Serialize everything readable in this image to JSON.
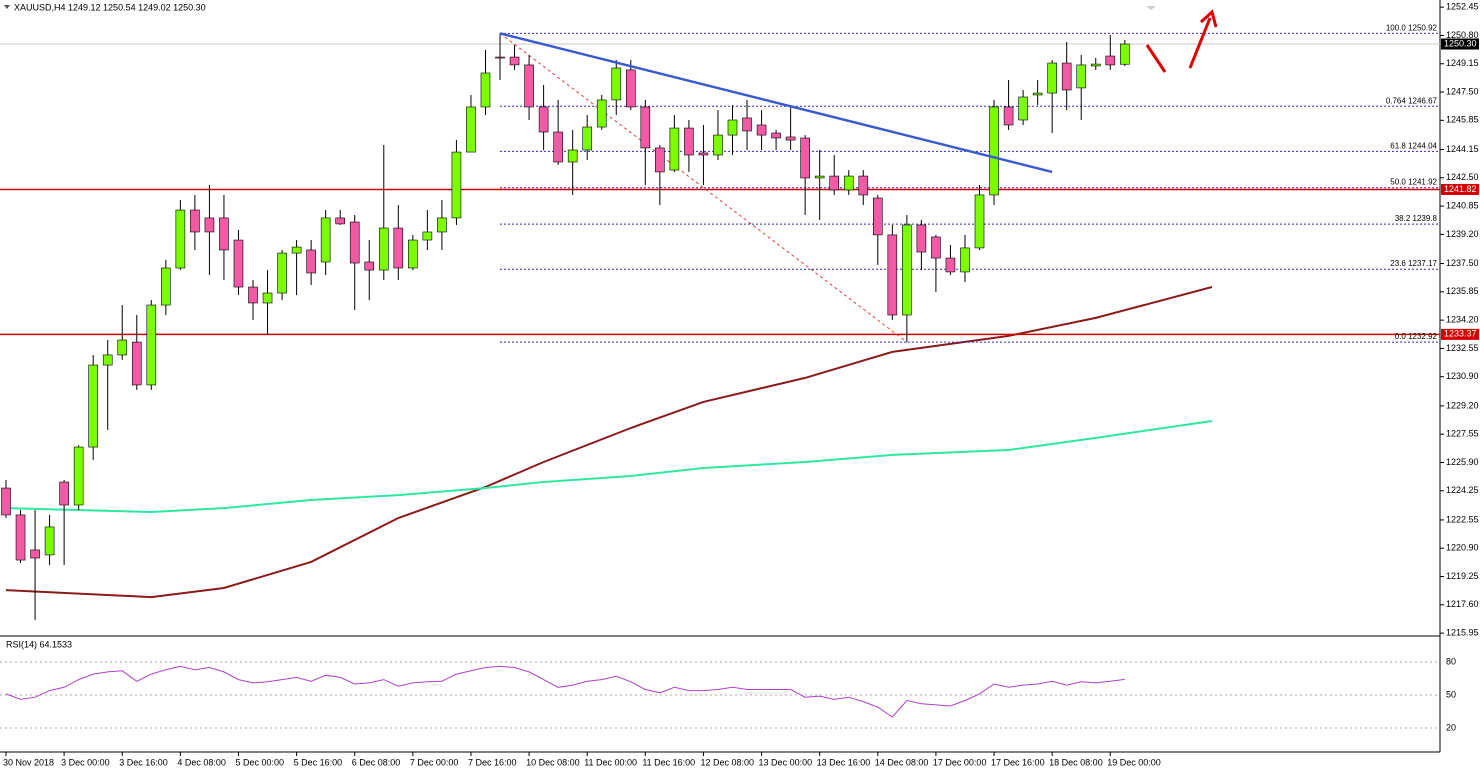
{
  "chart_data": {
    "type": "candlestick",
    "title": "XAUUSD,H4  1249.12 1250.54 1249.02 1250.30",
    "categories": [
      "30 Nov 2018",
      null,
      null,
      null,
      "3 Dec 00:00",
      null,
      null,
      null,
      "3 Dec 16:00",
      null,
      null,
      null,
      "4 Dec 08:00",
      null,
      null,
      null,
      "5 Dec 00:00",
      null,
      null,
      null,
      "5 Dec 16:00",
      null,
      null,
      null,
      "6 Dec 08:00",
      null,
      null,
      null,
      "7 Dec 00:00",
      null,
      null,
      null,
      "7 Dec 16:00",
      null,
      null,
      null,
      "10 Dec 08:00",
      null,
      null,
      null,
      "11 Dec 00:00",
      null,
      null,
      null,
      "11 Dec 16:00",
      null,
      null,
      null,
      "12 Dec 08:00",
      null,
      null,
      null,
      "13 Dec 00:00",
      null,
      null,
      null,
      "13 Dec 16:00",
      null,
      null,
      null,
      "14 Dec 08:00",
      null,
      null,
      null,
      "17 Dec 00:00",
      null,
      null,
      null,
      "17 Dec 16:00",
      null,
      null,
      null,
      "18 Dec 08:00",
      null,
      null,
      null,
      "19 Dec 00:00",
      null
    ],
    "open": [
      1224.41,
      1222.84,
      1220.8,
      1220.51,
      1224.76,
      1223.42,
      1226.8,
      1231.58,
      1232.17,
      1232.92,
      1230.42,
      1235.08,
      1237.24,
      1240.62,
      1240.16,
      1240.16,
      1238.87,
      1236.13,
      1235.2,
      1235.78,
      1238.11,
      1238.29,
      1237.59,
      1240.16,
      1239.92,
      1237.59,
      1237.12,
      1239.57,
      1237.24,
      1238.87,
      1239.34,
      1240.16,
      1244.0,
      1246.63,
      1249.54,
      1249.54,
      1249.08,
      1246.63,
      1245.17,
      1243.42,
      1244.12,
      1245.46,
      1247.04,
      1248.79,
      1246.63,
      1244.24,
      1242.95,
      1245.4,
      1243.95,
      1243.83,
      1244.99,
      1245.99,
      1245.58,
      1245.11,
      1244.88,
      1244.82,
      1242.49,
      1242.6,
      1241.79,
      1242.6,
      1241.32,
      1239.17,
      1234.5,
      1239.75,
      1239.05,
      1237.82,
      1237.01,
      1238.41,
      1241.5,
      1246.63,
      1245.87,
      1247.33,
      1247.44,
      1249.19,
      1247.74,
      1249.02,
      1249.6,
      1249.12
    ],
    "high": [
      1224.88,
      1223.13,
      1223.13,
      1222.84,
      1224.88,
      1226.9,
      1232.17,
      1233.04,
      1235.08,
      1234.5,
      1235.37,
      1237.71,
      1241.21,
      1241.5,
      1242.08,
      1241.5,
      1239.46,
      1236.54,
      1237.12,
      1238.29,
      1238.87,
      1238.87,
      1240.62,
      1240.62,
      1240.33,
      1238.87,
      1244.41,
      1240.91,
      1239.17,
      1240.62,
      1241.21,
      1244.7,
      1247.33,
      1249.95,
      1250.92,
      1250.24,
      1249.66,
      1247.91,
      1247.04,
      1245.29,
      1246.16,
      1247.33,
      1249.37,
      1249.37,
      1247.04,
      1244.41,
      1246.16,
      1245.87,
      1245.58,
      1246.45,
      1246.74,
      1247.04,
      1246.45,
      1245.29,
      1246.74,
      1244.99,
      1244.12,
      1243.83,
      1242.95,
      1242.95,
      1241.5,
      1239.75,
      1240.33,
      1240.04,
      1239.17,
      1238.58,
      1239.17,
      1242.08,
      1247.04,
      1248.2,
      1247.62,
      1248.2,
      1249.37,
      1250.42,
      1249.66,
      1249.49,
      1250.83,
      1250.54
    ],
    "low": [
      1222.66,
      1220.04,
      1216.72,
      1219.92,
      1219.92,
      1223.13,
      1226.04,
      1227.8,
      1231.88,
      1230.13,
      1230.13,
      1234.5,
      1237.12,
      1238.29,
      1236.83,
      1236.54,
      1235.66,
      1234.21,
      1233.33,
      1235.37,
      1235.66,
      1236.25,
      1236.83,
      1239.75,
      1234.79,
      1235.37,
      1236.54,
      1236.54,
      1237.12,
      1238.29,
      1238.29,
      1239.75,
      1244.0,
      1246.16,
      1248.2,
      1248.79,
      1245.87,
      1244.12,
      1243.25,
      1241.5,
      1243.54,
      1245.29,
      1246.16,
      1246.45,
      1242.08,
      1240.91,
      1242.84,
      1242.84,
      1242.08,
      1243.54,
      1243.83,
      1244.12,
      1244.12,
      1244.12,
      1244.12,
      1240.33,
      1240.04,
      1241.5,
      1241.5,
      1240.91,
      1237.42,
      1234.21,
      1232.92,
      1237.12,
      1235.84,
      1236.83,
      1236.42,
      1238.29,
      1240.91,
      1245.29,
      1245.58,
      1246.74,
      1245.11,
      1246.45,
      1245.87,
      1248.79,
      1248.79,
      1249.02
    ],
    "close": [
      1222.84,
      1220.21,
      1220.33,
      1222.14,
      1223.42,
      1226.8,
      1231.58,
      1232.17,
      1233.04,
      1230.42,
      1235.08,
      1237.24,
      1240.62,
      1239.34,
      1239.34,
      1238.29,
      1236.13,
      1235.2,
      1235.78,
      1238.11,
      1238.46,
      1236.95,
      1240.16,
      1239.81,
      1237.53,
      1237.12,
      1239.57,
      1237.24,
      1238.87,
      1239.34,
      1240.16,
      1244.0,
      1246.63,
      1248.61,
      1249.49,
      1249.08,
      1246.63,
      1245.17,
      1243.42,
      1244.12,
      1245.46,
      1247.04,
      1248.9,
      1246.63,
      1244.24,
      1242.84,
      1245.4,
      1243.83,
      1243.83,
      1244.99,
      1245.87,
      1245.23,
      1244.99,
      1244.82,
      1244.7,
      1242.49,
      1242.6,
      1241.79,
      1242.6,
      1241.5,
      1239.17,
      1234.5,
      1239.75,
      1238.17,
      1237.82,
      1237.01,
      1238.41,
      1241.5,
      1246.63,
      1245.58,
      1247.21,
      1247.44,
      1249.19,
      1247.62,
      1249.08,
      1249.13,
      1249.08,
      1250.3
    ],
    "bull_color": "#7cfc00",
    "bear_color": "#f25aa6",
    "ylim": [
      1215.84,
      1252.75
    ],
    "yticks": [
      1252.45,
      {
        "value": 1250.8,
        "label": "1250.80"
      },
      1249.15,
      {
        "value": 1247.5,
        "label": "1247.50"
      },
      1245.85,
      1244.15,
      {
        "value": 1242.5,
        "label": "1242.50"
      },
      1240.85,
      {
        "value": 1239.2,
        "label": "1239.20"
      },
      {
        "value": 1237.5,
        "label": "1237.50"
      },
      1235.85,
      {
        "value": 1234.2,
        "label": "1234.20"
      },
      1232.55,
      {
        "value": 1230.9,
        "label": "1230.90"
      },
      {
        "value": 1229.2,
        "label": "1229.20"
      },
      1227.55,
      {
        "value": 1225.9,
        "label": "1225.90"
      },
      1224.25,
      1222.55,
      {
        "value": 1220.9,
        "label": "1220.90"
      },
      1219.25,
      {
        "value": 1217.6,
        "label": "1217.60"
      },
      1215.95
    ],
    "moving_averages": [
      {
        "color": "#8b1a1a",
        "x": [
          0,
          10,
          15,
          21,
          27,
          33,
          37,
          43,
          48,
          55,
          61,
          69,
          75,
          83
        ],
        "values": [
          1218.46,
          1218.05,
          1218.58,
          1220.1,
          1222.66,
          1224.47,
          1225.93,
          1227.91,
          1229.43,
          1230.83,
          1232.35,
          1233.28,
          1234.33,
          1236.13
        ]
      },
      {
        "color": "#2ee8a0",
        "x": [
          0,
          10,
          15,
          21,
          27,
          33,
          37,
          43,
          48,
          55,
          61,
          69,
          75,
          83
        ],
        "values": [
          1223.24,
          1223.01,
          1223.24,
          1223.71,
          1224.0,
          1224.41,
          1224.76,
          1225.11,
          1225.58,
          1225.93,
          1226.34,
          1226.63,
          1227.33,
          1228.32
        ]
      }
    ],
    "hlines": [
      {
        "value": 1241.82,
        "color": "#d40000"
      },
      {
        "value": 1233.37,
        "color": "#d40000"
      }
    ],
    "current_price": {
      "value": 1250.3,
      "label": "1250.30"
    },
    "fib": {
      "from": 34,
      "color": "#2a2ab8",
      "levels": [
        {
          "level": "100.0",
          "value": 1250.92
        },
        {
          "level": "0.764",
          "value": 1246.67
        },
        {
          "level": "61.8",
          "value": 1244.04
        },
        {
          "level": "50.0",
          "value": 1241.92
        },
        {
          "level": "38.2",
          "value": 1239.8
        },
        {
          "level": "23.6",
          "value": 1237.17
        },
        {
          "level": "0.0",
          "value": 1232.92
        }
      ]
    },
    "trendline": {
      "x": [
        34,
        72
      ],
      "values": [
        1250.92,
        1242.84
      ],
      "color": "#3a5bd0"
    },
    "swing_line": {
      "x": [
        34,
        62
      ],
      "values": [
        1250.92,
        1232.92
      ],
      "color": "#e04040"
    },
    "rsi": {
      "type": "line",
      "label": "RSI(14) 64.1533",
      "color": "#b040c8",
      "ylim": [
        0,
        100
      ],
      "yticks": [
        20,
        50,
        80
      ],
      "values": [
        51,
        46,
        48,
        54,
        57,
        64,
        69,
        71,
        72,
        62.5,
        69,
        73,
        76,
        73,
        75,
        71,
        64,
        61,
        62,
        64,
        66,
        62.5,
        68,
        66,
        60,
        61,
        64,
        58,
        61,
        62,
        62.5,
        69,
        72,
        75,
        76,
        75,
        71,
        64,
        57,
        59,
        62.5,
        64,
        67,
        62,
        55,
        52,
        57,
        54,
        54,
        55,
        57,
        55,
        55,
        55,
        55,
        48,
        49,
        46,
        48,
        44,
        39,
        30,
        45,
        42,
        41,
        40,
        45,
        51,
        60,
        57,
        59,
        60,
        62.5,
        59,
        62,
        61,
        62.5,
        64.1533
      ]
    }
  }
}
